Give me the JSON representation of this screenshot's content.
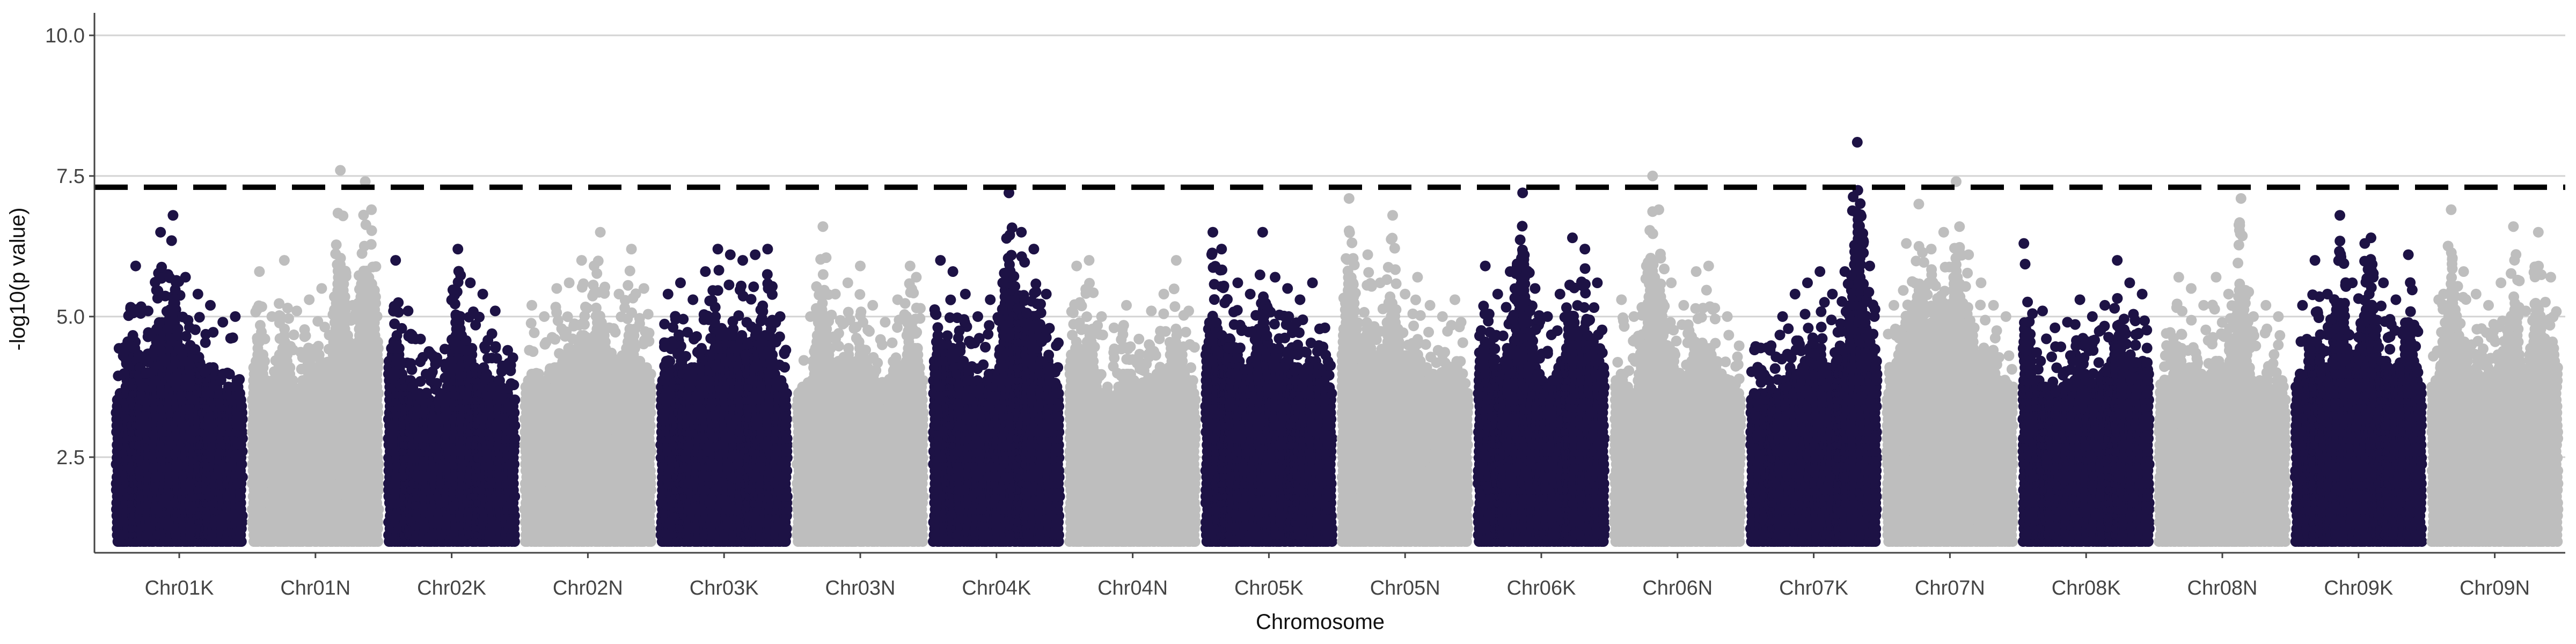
{
  "chart_data": {
    "type": "scatter",
    "title": "",
    "xlabel": "Chromosome",
    "ylabel": "-log10(p value)",
    "ylim": [
      0.8,
      10.4
    ],
    "yticks": [
      2.5,
      5.0,
      7.5,
      10.0
    ],
    "ytick_labels": [
      "2.5",
      "5.0",
      "7.5",
      "10.0"
    ],
    "grid": "horizontal",
    "threshold": 7.3,
    "min_value": 1.0,
    "colors": {
      "dark": "#1d1245",
      "light": "#bebebe",
      "threshold": "#000000",
      "grid": "#d3d3d3",
      "axis": "#444444"
    },
    "categories": [
      "Chr01K",
      "Chr01N",
      "Chr02K",
      "Chr02N",
      "Chr03K",
      "Chr03N",
      "Chr04K",
      "Chr04N",
      "Chr05K",
      "Chr05N",
      "Chr06K",
      "Chr06N",
      "Chr07K",
      "Chr07N",
      "Chr08K",
      "Chr08N",
      "Chr09K",
      "Chr09N"
    ],
    "series": [
      {
        "values": [
          [
            0.05,
            4.3
          ],
          [
            0.15,
            5.9
          ],
          [
            0.25,
            5.1
          ],
          [
            0.35,
            6.5
          ],
          [
            0.45,
            6.8
          ],
          [
            0.55,
            5.7
          ],
          [
            0.65,
            5.4
          ],
          [
            0.75,
            5.2
          ],
          [
            0.85,
            4.9
          ],
          [
            0.95,
            5.0
          ]
        ]
      },
      {
        "values": [
          [
            0.05,
            5.8
          ],
          [
            0.15,
            5.0
          ],
          [
            0.25,
            6.0
          ],
          [
            0.35,
            5.1
          ],
          [
            0.45,
            5.3
          ],
          [
            0.55,
            5.5
          ],
          [
            0.7,
            7.6
          ],
          [
            0.8,
            5.2
          ],
          [
            0.9,
            7.4
          ],
          [
            0.95,
            6.9
          ]
        ]
      },
      {
        "values": [
          [
            0.05,
            6.0
          ],
          [
            0.15,
            5.1
          ],
          [
            0.25,
            4.6
          ],
          [
            0.35,
            4.3
          ],
          [
            0.5,
            4.2
          ],
          [
            0.55,
            6.2
          ],
          [
            0.65,
            5.6
          ],
          [
            0.75,
            5.4
          ],
          [
            0.85,
            5.1
          ],
          [
            0.95,
            4.4
          ]
        ]
      },
      {
        "values": [
          [
            0.05,
            5.2
          ],
          [
            0.15,
            5.0
          ],
          [
            0.25,
            5.5
          ],
          [
            0.35,
            5.6
          ],
          [
            0.45,
            6.0
          ],
          [
            0.55,
            5.9
          ],
          [
            0.6,
            6.5
          ],
          [
            0.75,
            5.4
          ],
          [
            0.85,
            6.2
          ],
          [
            0.95,
            5.5
          ]
        ]
      },
      {
        "values": [
          [
            0.05,
            5.4
          ],
          [
            0.15,
            5.6
          ],
          [
            0.25,
            5.3
          ],
          [
            0.35,
            5.8
          ],
          [
            0.45,
            6.2
          ],
          [
            0.55,
            6.1
          ],
          [
            0.65,
            6.0
          ],
          [
            0.75,
            6.1
          ],
          [
            0.85,
            6.2
          ],
          [
            0.95,
            5.0
          ]
        ]
      },
      {
        "values": [
          [
            0.1,
            5.0
          ],
          [
            0.2,
            6.6
          ],
          [
            0.3,
            5.4
          ],
          [
            0.4,
            5.6
          ],
          [
            0.5,
            5.9
          ],
          [
            0.6,
            5.2
          ],
          [
            0.7,
            4.9
          ],
          [
            0.8,
            5.3
          ],
          [
            0.9,
            5.9
          ],
          [
            0.95,
            5.7
          ]
        ]
      },
      {
        "values": [
          [
            0.05,
            6.0
          ],
          [
            0.15,
            5.8
          ],
          [
            0.25,
            5.4
          ],
          [
            0.35,
            5.0
          ],
          [
            0.45,
            5.3
          ],
          [
            0.55,
            5.6
          ],
          [
            0.6,
            7.2
          ],
          [
            0.7,
            6.5
          ],
          [
            0.8,
            6.2
          ],
          [
            0.9,
            5.4
          ]
        ]
      },
      {
        "values": [
          [
            0.05,
            5.9
          ],
          [
            0.15,
            6.0
          ],
          [
            0.25,
            5.0
          ],
          [
            0.35,
            4.8
          ],
          [
            0.45,
            5.2
          ],
          [
            0.55,
            4.6
          ],
          [
            0.65,
            5.1
          ],
          [
            0.75,
            5.4
          ],
          [
            0.85,
            6.0
          ],
          [
            0.95,
            5.1
          ]
        ]
      },
      {
        "values": [
          [
            0.05,
            6.5
          ],
          [
            0.12,
            6.2
          ],
          [
            0.25,
            5.6
          ],
          [
            0.35,
            5.4
          ],
          [
            0.45,
            6.5
          ],
          [
            0.55,
            5.7
          ],
          [
            0.65,
            5.5
          ],
          [
            0.75,
            5.3
          ],
          [
            0.85,
            5.6
          ],
          [
            0.95,
            4.8
          ]
        ]
      },
      {
        "values": [
          [
            0.05,
            7.1
          ],
          [
            0.2,
            6.1
          ],
          [
            0.3,
            5.6
          ],
          [
            0.4,
            6.8
          ],
          [
            0.5,
            5.4
          ],
          [
            0.6,
            5.7
          ],
          [
            0.7,
            5.2
          ],
          [
            0.8,
            5.0
          ],
          [
            0.9,
            5.3
          ],
          [
            0.95,
            4.9
          ]
        ]
      },
      {
        "values": [
          [
            0.05,
            5.9
          ],
          [
            0.15,
            5.4
          ],
          [
            0.25,
            5.8
          ],
          [
            0.35,
            7.2
          ],
          [
            0.45,
            5.5
          ],
          [
            0.55,
            5.0
          ],
          [
            0.65,
            5.4
          ],
          [
            0.75,
            6.4
          ],
          [
            0.85,
            6.2
          ],
          [
            0.95,
            5.6
          ]
        ]
      },
      {
        "values": [
          [
            0.05,
            5.3
          ],
          [
            0.15,
            5.0
          ],
          [
            0.25,
            5.9
          ],
          [
            0.3,
            7.5
          ],
          [
            0.35,
            6.9
          ],
          [
            0.45,
            5.6
          ],
          [
            0.55,
            5.2
          ],
          [
            0.65,
            5.8
          ],
          [
            0.75,
            5.9
          ],
          [
            0.9,
            5.0
          ]
        ]
      },
      {
        "values": [
          [
            0.05,
            4.1
          ],
          [
            0.15,
            4.4
          ],
          [
            0.25,
            5.0
          ],
          [
            0.35,
            5.4
          ],
          [
            0.45,
            5.6
          ],
          [
            0.55,
            5.8
          ],
          [
            0.65,
            5.4
          ],
          [
            0.75,
            5.8
          ],
          [
            0.85,
            8.1
          ],
          [
            0.95,
            5.9
          ]
        ]
      },
      {
        "values": [
          [
            0.05,
            5.2
          ],
          [
            0.15,
            6.3
          ],
          [
            0.25,
            7.0
          ],
          [
            0.35,
            6.2
          ],
          [
            0.45,
            6.5
          ],
          [
            0.55,
            7.4
          ],
          [
            0.65,
            6.1
          ],
          [
            0.75,
            5.6
          ],
          [
            0.85,
            5.2
          ],
          [
            0.95,
            5.0
          ]
        ]
      },
      {
        "values": [
          [
            0.0,
            6.3
          ],
          [
            0.15,
            5.1
          ],
          [
            0.25,
            4.8
          ],
          [
            0.35,
            4.9
          ],
          [
            0.45,
            5.3
          ],
          [
            0.55,
            5.0
          ],
          [
            0.65,
            5.2
          ],
          [
            0.75,
            6.0
          ],
          [
            0.85,
            5.6
          ],
          [
            0.95,
            5.4
          ]
        ]
      },
      {
        "values": [
          [
            0.05,
            4.7
          ],
          [
            0.15,
            5.7
          ],
          [
            0.25,
            5.5
          ],
          [
            0.35,
            5.2
          ],
          [
            0.45,
            5.7
          ],
          [
            0.55,
            5.4
          ],
          [
            0.65,
            7.1
          ],
          [
            0.75,
            5.0
          ],
          [
            0.85,
            5.2
          ],
          [
            0.95,
            5.0
          ]
        ]
      },
      {
        "values": [
          [
            0.05,
            5.2
          ],
          [
            0.15,
            6.0
          ],
          [
            0.25,
            5.4
          ],
          [
            0.35,
            6.8
          ],
          [
            0.45,
            5.6
          ],
          [
            0.55,
            6.3
          ],
          [
            0.6,
            6.4
          ],
          [
            0.7,
            5.6
          ],
          [
            0.8,
            5.3
          ],
          [
            0.9,
            6.1
          ]
        ]
      },
      {
        "values": [
          [
            0.05,
            5.3
          ],
          [
            0.15,
            6.9
          ],
          [
            0.25,
            5.8
          ],
          [
            0.35,
            5.4
          ],
          [
            0.45,
            5.2
          ],
          [
            0.55,
            5.6
          ],
          [
            0.65,
            6.6
          ],
          [
            0.75,
            5.1
          ],
          [
            0.85,
            6.5
          ],
          [
            0.95,
            5.7
          ]
        ]
      }
    ]
  }
}
